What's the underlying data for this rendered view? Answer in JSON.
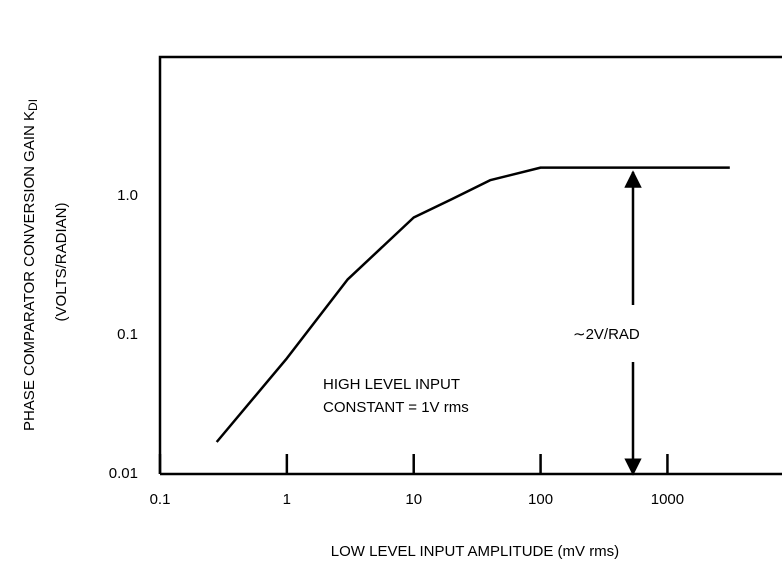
{
  "chart_data": {
    "type": "line",
    "ylabel": "PHASE COMPARATOR CONVERSION GAIN K",
    "ylabel_subscript": "DI",
    "ylabel2": "(VOLTS/RADIAN)",
    "xlabel": "LOW LEVEL INPUT AMPLITUDE (mV rms)",
    "x": [
      0.28,
      1,
      3,
      10,
      20,
      40,
      100,
      3100
    ],
    "series": [
      {
        "color": "#000000",
        "values": [
          0.017,
          0.068,
          0.25,
          0.7,
          0.95,
          1.3,
          1.6,
          1.6
        ]
      }
    ],
    "xscale": "log",
    "yscale": "log",
    "xlim": [
      0.1,
      8000
    ],
    "ylim": [
      0.01,
      10
    ],
    "xticks": [
      0.1,
      1,
      10,
      100,
      1000
    ],
    "yticks": [
      0.01,
      0.1,
      {
        "value": 1,
        "label": "1.0"
      }
    ],
    "grid": false,
    "annotations": [
      "∼2V/RAD",
      "HIGH LEVEL INPUT",
      "CONSTANT = 1V rms"
    ]
  }
}
